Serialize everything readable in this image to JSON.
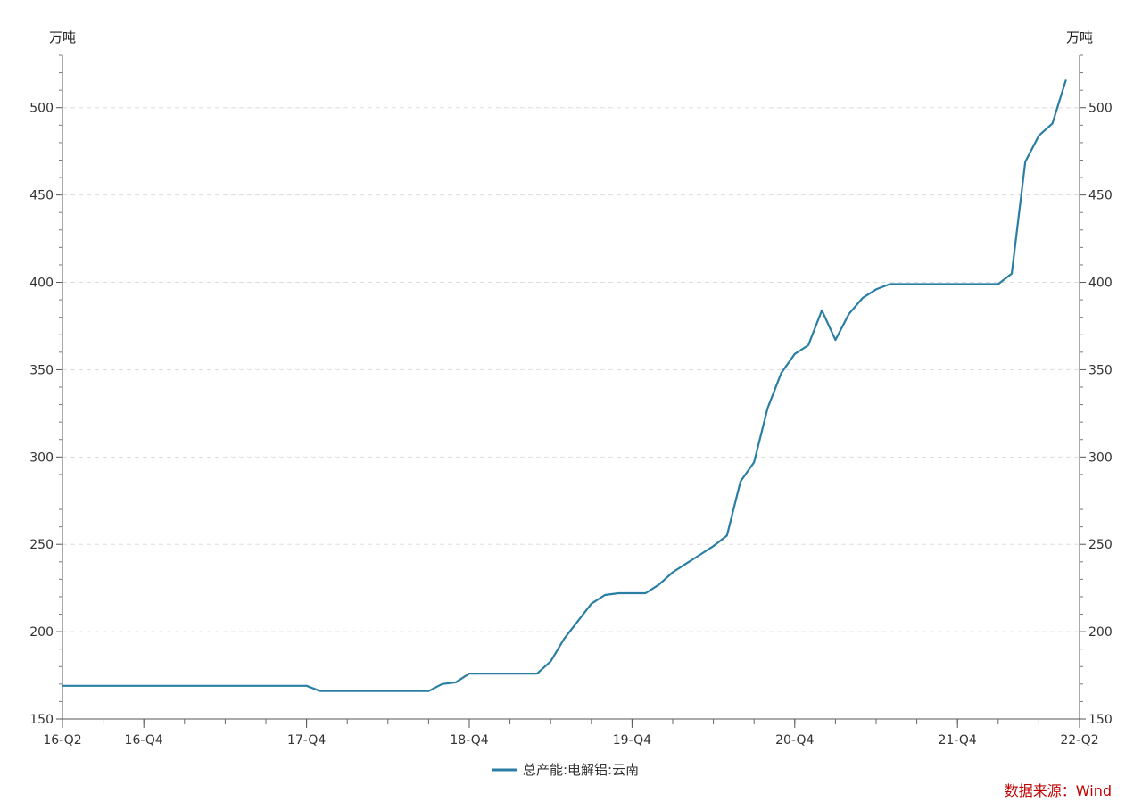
{
  "chart_data": {
    "type": "line",
    "y_unit_left": "万吨",
    "y_unit_right": "万吨",
    "ylim": [
      150,
      530
    ],
    "y_ticks": [
      150,
      200,
      250,
      300,
      350,
      400,
      450,
      500
    ],
    "x_tick_labels": [
      "16-Q2",
      "16-Q4",
      "17-Q4",
      "18-Q4",
      "19-Q4",
      "20-Q4",
      "21-Q4",
      "22-Q2"
    ],
    "grid": "horizontal-dashed",
    "legend_position": "bottom-center",
    "series": [
      {
        "name": "总产能:电解铝:云南",
        "color": "#2a7ea3",
        "points": [
          [
            "2016-04",
            169
          ],
          [
            "2016-08",
            169
          ],
          [
            "2016-12",
            169
          ],
          [
            "2017-04",
            169
          ],
          [
            "2017-08",
            169
          ],
          [
            "2017-10",
            169
          ],
          [
            "2017-11",
            166
          ],
          [
            "2017-12",
            166
          ],
          [
            "2018-03",
            166
          ],
          [
            "2018-06",
            166
          ],
          [
            "2018-07",
            166
          ],
          [
            "2018-08",
            170
          ],
          [
            "2018-09",
            171
          ],
          [
            "2018-10",
            176
          ],
          [
            "2018-12",
            176
          ],
          [
            "2019-02",
            176
          ],
          [
            "2019-03",
            176
          ],
          [
            "2019-04",
            183
          ],
          [
            "2019-05",
            196
          ],
          [
            "2019-06",
            206
          ],
          [
            "2019-07",
            216
          ],
          [
            "2019-08",
            221
          ],
          [
            "2019-09",
            222
          ],
          [
            "2019-10",
            222
          ],
          [
            "2019-11",
            222
          ],
          [
            "2019-12",
            227
          ],
          [
            "2020-01",
            234
          ],
          [
            "2020-02",
            239
          ],
          [
            "2020-03",
            244
          ],
          [
            "2020-04",
            249
          ],
          [
            "2020-05",
            255
          ],
          [
            "2020-06",
            286
          ],
          [
            "2020-07",
            297
          ],
          [
            "2020-08",
            328
          ],
          [
            "2020-09",
            348
          ],
          [
            "2020-10",
            359
          ],
          [
            "2020-11",
            364
          ],
          [
            "2020-12",
            384
          ],
          [
            "2021-01",
            367
          ],
          [
            "2021-02",
            382
          ],
          [
            "2021-03",
            391
          ],
          [
            "2021-04",
            396
          ],
          [
            "2021-05",
            399
          ],
          [
            "2021-06",
            399
          ],
          [
            "2021-09",
            399
          ],
          [
            "2021-12",
            399
          ],
          [
            "2022-01",
            399
          ],
          [
            "2022-02",
            405
          ],
          [
            "2022-03",
            469
          ],
          [
            "2022-04",
            484
          ],
          [
            "2022-05",
            491
          ],
          [
            "2022-06",
            516
          ]
        ]
      }
    ]
  },
  "source": "数据来源：Wind"
}
